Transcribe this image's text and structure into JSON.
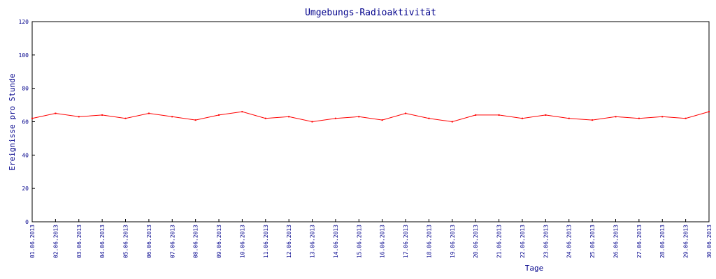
{
  "chart_data": {
    "type": "line",
    "title": "Umgebungs-Radioaktivität",
    "xlabel": "Tage",
    "ylabel": "Ereignisse pro Stunde",
    "ylim": [
      0,
      120
    ],
    "yticks": [
      0,
      20,
      40,
      60,
      80,
      100,
      120
    ],
    "xlim": [
      "01.06.2013",
      "30.06.2013"
    ],
    "xtick_labels": [
      "01.06.2013",
      "02.06.2013",
      "03.06.2013",
      "04.06.2013",
      "05.06.2013",
      "06.06.2013",
      "07.06.2013",
      "08.06.2013",
      "09.06.2013",
      "10.06.2013",
      "11.06.2013",
      "12.06.2013",
      "13.06.2013",
      "14.06.2013",
      "15.06.2013",
      "16.06.2013",
      "17.06.2013",
      "18.06.2013",
      "19.06.2013",
      "20.06.2013",
      "21.06.2013",
      "22.06.2013",
      "23.06.2013",
      "24.06.2013",
      "25.06.2013",
      "26.06.2013",
      "27.06.2013",
      "28.06.2013",
      "29.06.2013",
      "30.06.2013"
    ],
    "grid": false,
    "colors": {
      "series": "#ff0000",
      "text": "#00008b",
      "axes": "#000000"
    },
    "series": [
      {
        "x": [
          "01.06.2013",
          "02.06.2013",
          "03.06.2013",
          "04.06.2013",
          "05.06.2013",
          "06.06.2013",
          "07.06.2013",
          "08.06.2013",
          "09.06.2013",
          "10.06.2013",
          "11.06.2013",
          "12.06.2013",
          "13.06.2013",
          "14.06.2013",
          "15.06.2013",
          "16.06.2013",
          "17.06.2013",
          "18.06.2013",
          "19.06.2013",
          "20.06.2013",
          "21.06.2013",
          "22.06.2013",
          "23.06.2013",
          "24.06.2013",
          "25.06.2013",
          "26.06.2013",
          "27.06.2013",
          "28.06.2013",
          "29.06.2013",
          "30.06.2013"
        ],
        "values": [
          62,
          65,
          63,
          64,
          62,
          65,
          63,
          61,
          64,
          66,
          62,
          63,
          60,
          62,
          63,
          61,
          65,
          62,
          60,
          64,
          64,
          62,
          64,
          62,
          61,
          63,
          62,
          63,
          62,
          66
        ]
      }
    ]
  }
}
